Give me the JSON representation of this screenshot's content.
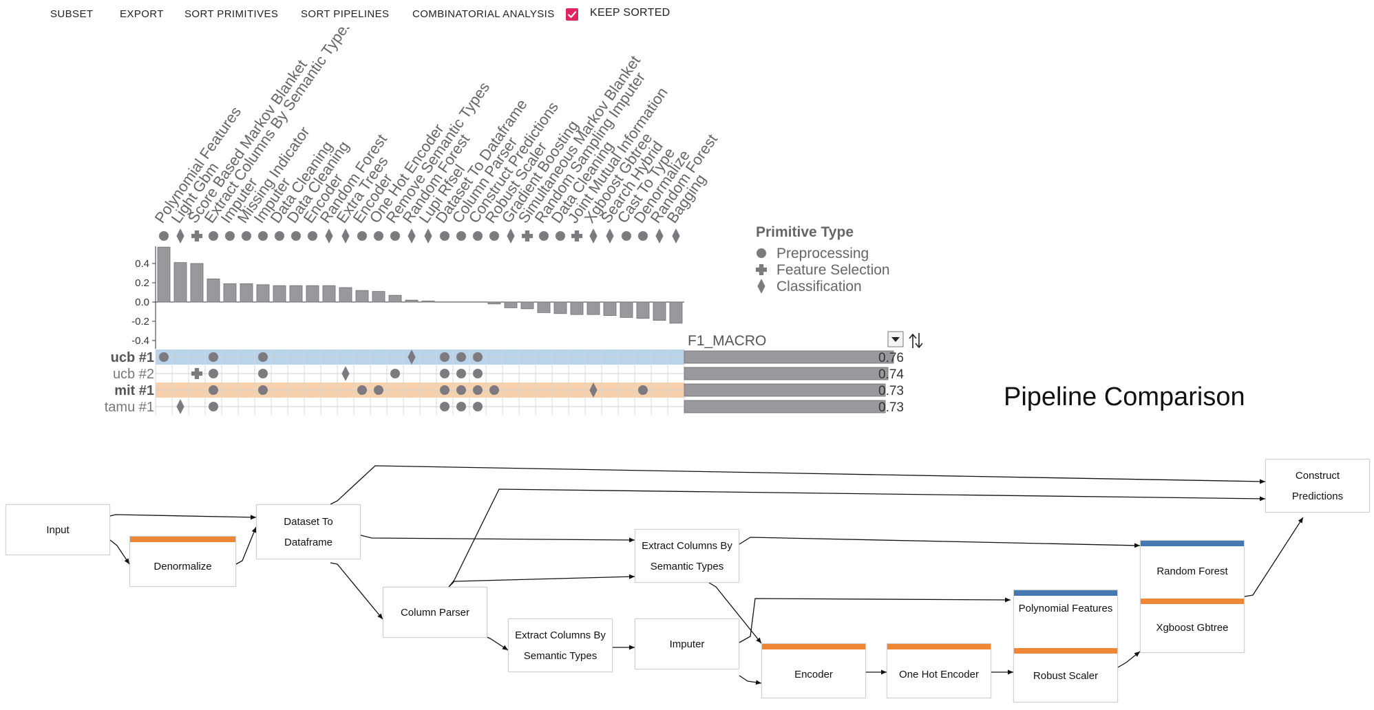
{
  "toolbar": {
    "subset": "SUBSET",
    "export": "EXPORT",
    "sort_primitives": "SORT PRIMITIVES",
    "sort_pipelines": "SORT PIPELINES",
    "combinatorial": "COMBINATORIAL ANALYSIS",
    "keep_sorted": "KEEP SORTED",
    "keep_sorted_checked": true,
    "checkbox_color": "#e0245e"
  },
  "primitives": [
    {
      "name": "Polynomial Features",
      "type": "Preprocessing",
      "importance": 0.57
    },
    {
      "name": "Light Gbm",
      "type": "Classification",
      "importance": 0.41
    },
    {
      "name": "Score Based Markov Blanket",
      "type": "Feature Selection",
      "importance": 0.4
    },
    {
      "name": "Extract Columns By Semantic Types",
      "type": "Preprocessing",
      "importance": 0.24
    },
    {
      "name": "Imputer",
      "type": "Preprocessing",
      "importance": 0.19
    },
    {
      "name": "Missing Indicator",
      "type": "Preprocessing",
      "importance": 0.19
    },
    {
      "name": "Imputer",
      "type": "Preprocessing",
      "importance": 0.18
    },
    {
      "name": "Data Cleaning",
      "type": "Preprocessing",
      "importance": 0.17
    },
    {
      "name": "Data Cleaning",
      "type": "Preprocessing",
      "importance": 0.17
    },
    {
      "name": "Encoder",
      "type": "Preprocessing",
      "importance": 0.17
    },
    {
      "name": "Random Forest",
      "type": "Classification",
      "importance": 0.17
    },
    {
      "name": "Extra Trees",
      "type": "Classification",
      "importance": 0.15
    },
    {
      "name": "Encoder",
      "type": "Preprocessing",
      "importance": 0.12
    },
    {
      "name": "One Hot Encoder",
      "type": "Preprocessing",
      "importance": 0.11
    },
    {
      "name": "Remove Semantic Types",
      "type": "Preprocessing",
      "importance": 0.07
    },
    {
      "name": "Random Forest",
      "type": "Classification",
      "importance": 0.02
    },
    {
      "name": "Lupi Rfsel",
      "type": "Classification",
      "importance": 0.01
    },
    {
      "name": "Dataset To Dataframe",
      "type": "Preprocessing",
      "importance": 0.0
    },
    {
      "name": "Column Parser",
      "type": "Preprocessing",
      "importance": 0.0
    },
    {
      "name": "Construct Predictions",
      "type": "Preprocessing",
      "importance": 0.0
    },
    {
      "name": "Robust Scaler",
      "type": "Preprocessing",
      "importance": -0.02
    },
    {
      "name": "Gradient Boosting",
      "type": "Classification",
      "importance": -0.06
    },
    {
      "name": "Simultaneous Markov Blanket",
      "type": "Feature Selection",
      "importance": -0.07
    },
    {
      "name": "Random Sampling Imputer",
      "type": "Preprocessing",
      "importance": -0.11
    },
    {
      "name": "Data Cleaning",
      "type": "Preprocessing",
      "importance": -0.12
    },
    {
      "name": "Joint Mutual Information",
      "type": "Feature Selection",
      "importance": -0.13
    },
    {
      "name": "Xgboost Gbtree",
      "type": "Classification",
      "importance": -0.13
    },
    {
      "name": "Search Hybrid",
      "type": "Classification",
      "importance": -0.14
    },
    {
      "name": "Cast To Type",
      "type": "Preprocessing",
      "importance": -0.16
    },
    {
      "name": "Denormalize",
      "type": "Preprocessing",
      "importance": -0.17
    },
    {
      "name": "Random Forest",
      "type": "Classification",
      "importance": -0.19
    },
    {
      "name": "Bagging",
      "type": "Classification",
      "importance": -0.22
    }
  ],
  "importance_axis": {
    "ticks": [
      "0.4",
      "0.2",
      "0.0",
      "-0.2",
      "-0.4"
    ],
    "range": [
      -0.5,
      0.6
    ]
  },
  "legend": {
    "title": "Primitive Type",
    "items": [
      {
        "label": "Preprocessing",
        "shape": "circle"
      },
      {
        "label": "Feature Selection",
        "shape": "plus"
      },
      {
        "label": "Classification",
        "shape": "diamond"
      }
    ]
  },
  "metric": {
    "label": "F1_MACRO",
    "max": 0.8
  },
  "pipelines": [
    {
      "label": "ucb #1",
      "bold": true,
      "score": "0.76",
      "score_value": 0.76,
      "highlight": "#b9d3ea",
      "cells": [
        0,
        3,
        6,
        15,
        17,
        18,
        19
      ]
    },
    {
      "label": "ucb #2",
      "bold": false,
      "score": "0.74",
      "score_value": 0.74,
      "highlight": "",
      "cells": [
        2,
        3,
        6,
        11,
        14,
        17,
        18,
        19
      ]
    },
    {
      "label": "mit #1",
      "bold": true,
      "score": "0.73",
      "score_value": 0.73,
      "highlight": "#f7d0ad",
      "cells": [
        3,
        6,
        12,
        13,
        17,
        18,
        19,
        20,
        26,
        29
      ]
    },
    {
      "label": "tamu #1",
      "bold": false,
      "score": "0.73",
      "score_value": 0.73,
      "highlight": "",
      "cells": [
        1,
        3,
        17,
        18,
        19
      ]
    }
  ],
  "comparison": {
    "title": "Pipeline Comparison",
    "colors": {
      "pipeline_a": "#4478b0",
      "pipeline_b": "#ee8636"
    },
    "nodes": {
      "input": {
        "label": "Input"
      },
      "denormalize": {
        "label": "Denormalize"
      },
      "dataset_to_dataframe": {
        "label": "Dataset To Dataframe"
      },
      "column_parser": {
        "label": "Column Parser"
      },
      "extract_columns_1": {
        "label": "Extract Columns By Semantic Types"
      },
      "extract_columns_2": {
        "label": "Extract Columns By Semantic Types"
      },
      "imputer": {
        "label": "Imputer"
      },
      "encoder": {
        "label": "Encoder"
      },
      "one_hot_encoder": {
        "label": "One Hot Encoder"
      },
      "polynomial_features": {
        "label": "Polynomial Features"
      },
      "robust_scaler": {
        "label": "Robust Scaler"
      },
      "random_forest": {
        "label": "Random Forest"
      },
      "xgboost_gbtree": {
        "label": "Xgboost Gbtree"
      },
      "construct_predictions": {
        "label": "Construct Predictions"
      }
    }
  }
}
